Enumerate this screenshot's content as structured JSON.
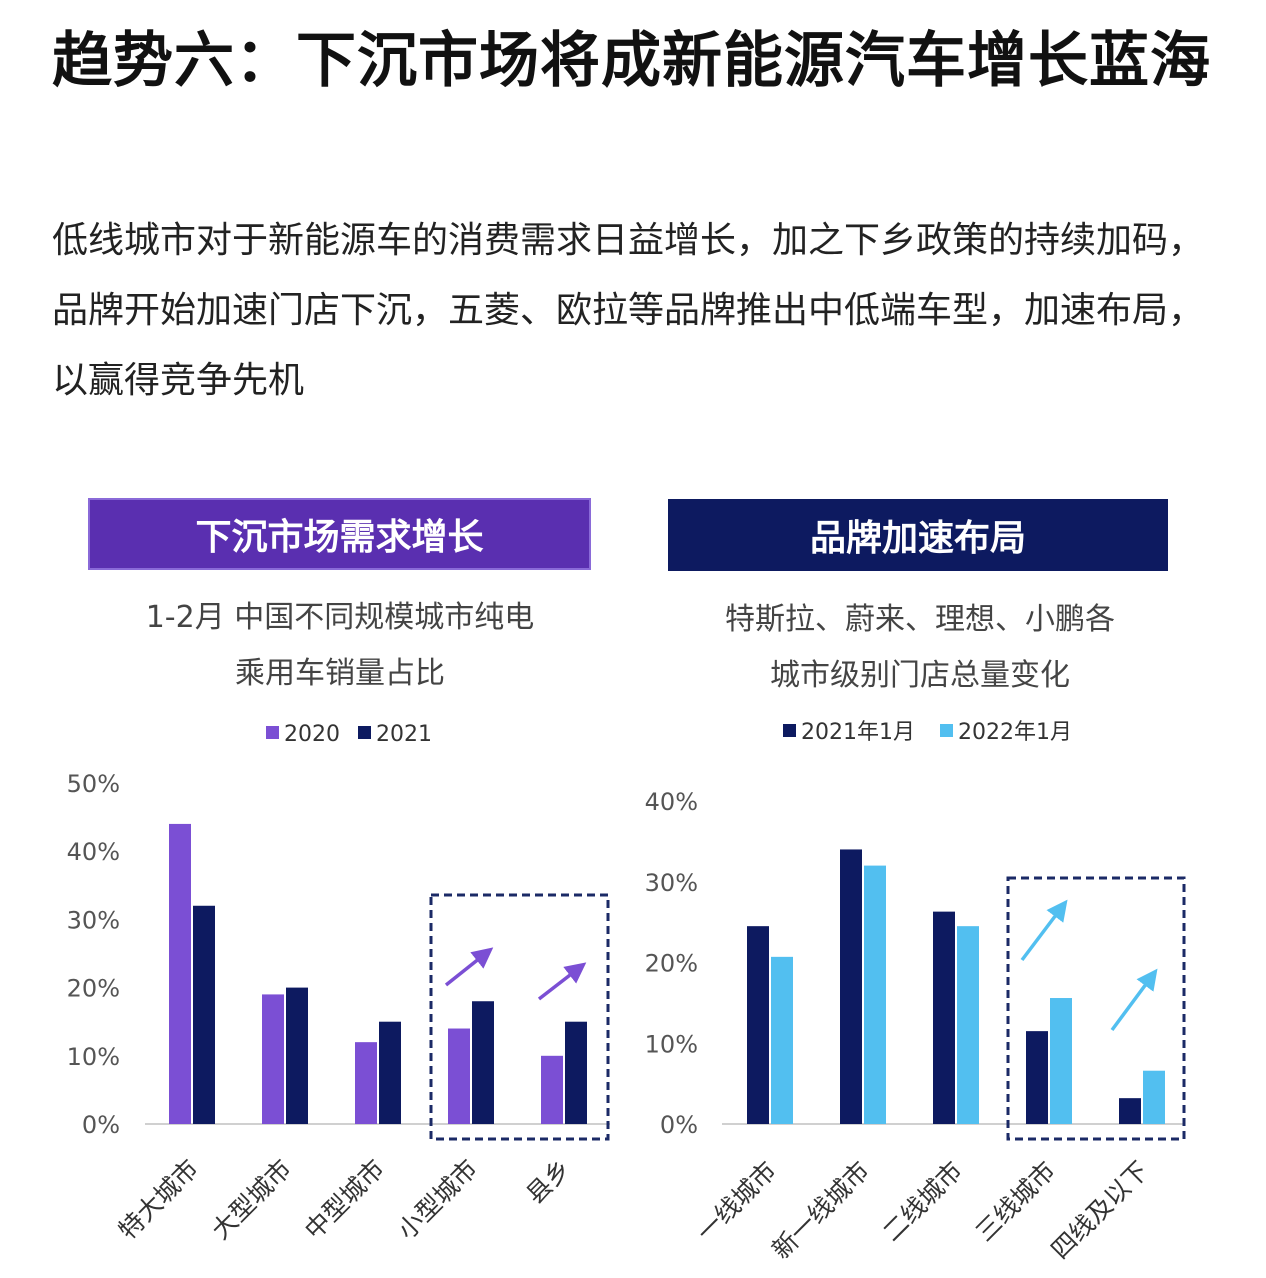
{
  "title": "趋势六：下沉市场将成新能源汽车增长蓝海",
  "intro": "低线城市对于新能源车的消费需求日益增长，加之下乡政策的持续加码，品牌开始加速门店下沉，五菱、欧拉等品牌推出中低端车型，加速布局，以赢得竞争先机",
  "panels": {
    "left": {
      "header": "下沉市场需求增长",
      "chart_title_line1": "1-2月 中国不同规模城市纯电",
      "chart_title_line2": "乘用车销量占比"
    },
    "right": {
      "header": "品牌加速布局",
      "chart_title_line1": "特斯拉、蔚来、理想、小鹏各",
      "chart_title_line2": "城市级别门店总量变化"
    }
  },
  "colors": {
    "purple": "#7b4fd4",
    "navy": "#0d1a60",
    "lightblue": "#52bff0",
    "dashed_box": "#1b2a66"
  },
  "chart_data": [
    {
      "type": "bar",
      "title": "1-2月 中国不同规模城市纯电乘用车销量占比",
      "categories": [
        "特大城市",
        "大型城市",
        "中型城市",
        "小型城市",
        "县乡"
      ],
      "series": [
        {
          "name": "2020",
          "values": [
            44,
            19,
            12,
            14,
            10
          ],
          "color": "#7b4fd4"
        },
        {
          "name": "2021",
          "values": [
            32,
            20,
            15,
            18,
            15
          ],
          "color": "#0d1a60"
        }
      ],
      "yticks": [
        "0%",
        "10%",
        "20%",
        "30%",
        "40%",
        "50%"
      ],
      "ylim": [
        0,
        50
      ],
      "grid": false,
      "legend_position": "top-center",
      "highlight_categories": [
        3,
        4
      ]
    },
    {
      "type": "bar",
      "title": "特斯拉、蔚来、理想、小鹏各城市级别门店总量变化",
      "categories": [
        "一线城市",
        "新一线城市",
        "二线城市",
        "三线城市",
        "四线及以下"
      ],
      "series": [
        {
          "name": "2021年1月",
          "values": [
            24.5,
            34,
            26.3,
            11.5,
            3.2
          ],
          "color": "#0d1a60"
        },
        {
          "name": "2022年1月",
          "values": [
            20.7,
            32,
            24.5,
            15.6,
            6.6
          ],
          "color": "#52bff0"
        }
      ],
      "yticks": [
        "0%",
        "10%",
        "20%",
        "30%",
        "40%"
      ],
      "ylim": [
        0,
        40
      ],
      "grid": false,
      "legend_position": "top-center",
      "highlight_categories": [
        3,
        4
      ]
    }
  ]
}
